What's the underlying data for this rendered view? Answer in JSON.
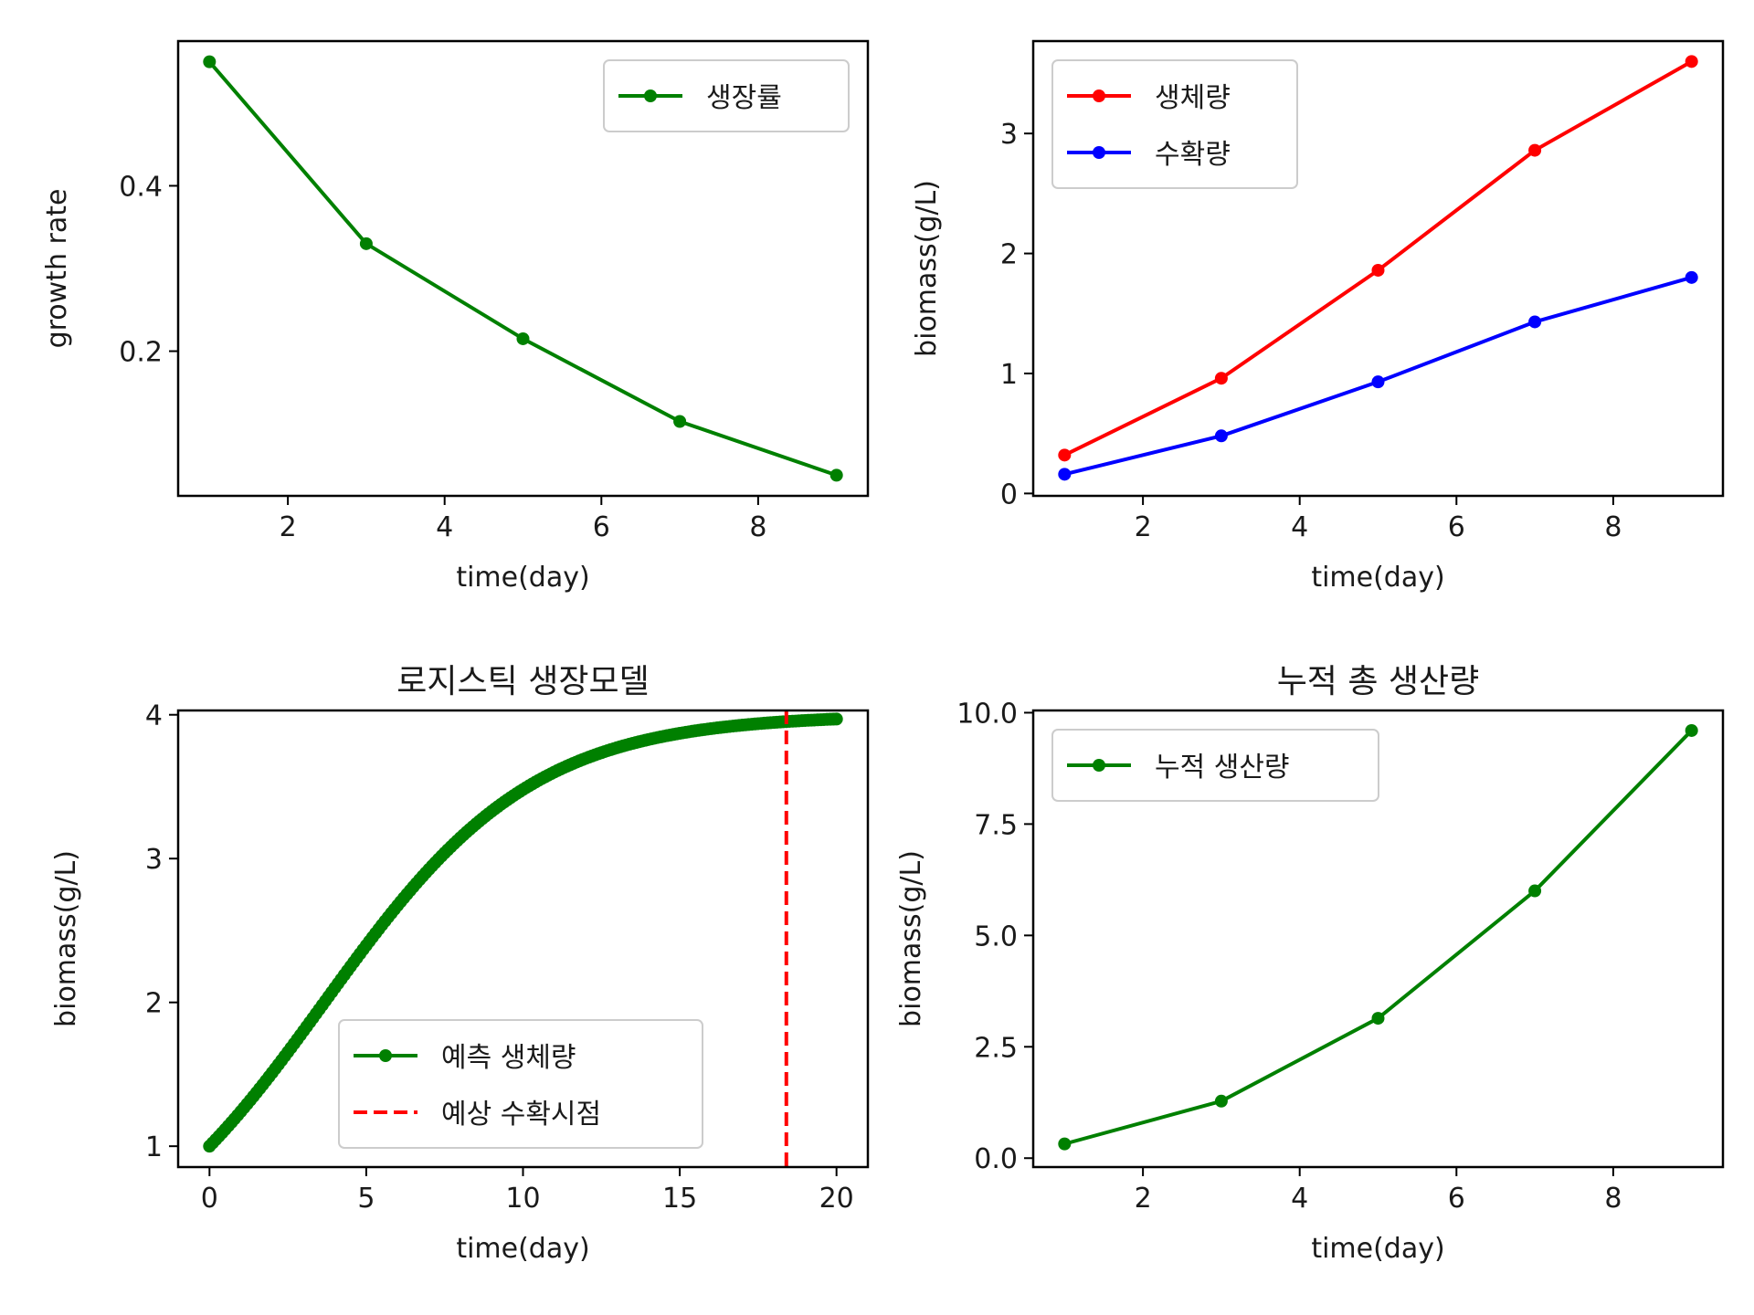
{
  "chart_data": [
    {
      "type": "line",
      "title": "",
      "xlabel": "time(day)",
      "ylabel": "growth rate",
      "xlim": [
        0.6,
        9.4
      ],
      "ylim": [
        0.025,
        0.575
      ],
      "xticks": [
        2,
        4,
        6,
        8
      ],
      "yticks": [
        0.2,
        0.4
      ],
      "ytick_format": "1",
      "legend_position": "top-right",
      "grid": false,
      "series": [
        {
          "name": "생장률",
          "color": "#008000",
          "marker": "dot",
          "style": "solid",
          "x": [
            1,
            3,
            5,
            7,
            9
          ],
          "y": [
            0.55,
            0.33,
            0.215,
            0.115,
            0.05
          ]
        }
      ]
    },
    {
      "type": "line",
      "title": "",
      "xlabel": "time(day)",
      "ylabel": "biomass(g/L)",
      "xlim": [
        0.6,
        9.4
      ],
      "ylim": [
        -0.02,
        3.77
      ],
      "xticks": [
        2,
        4,
        6,
        8
      ],
      "yticks": [
        0,
        1,
        2,
        3
      ],
      "ytick_format": "0",
      "legend_position": "top-left",
      "grid": false,
      "series": [
        {
          "name": "생체량",
          "color": "#ff0000",
          "marker": "dot",
          "style": "solid",
          "x": [
            1,
            3,
            5,
            7,
            9
          ],
          "y": [
            0.32,
            0.96,
            1.86,
            2.86,
            3.6
          ]
        },
        {
          "name": "수확량",
          "color": "#0000ff",
          "marker": "dot",
          "style": "solid",
          "x": [
            1,
            3,
            5,
            7,
            9
          ],
          "y": [
            0.16,
            0.48,
            0.93,
            1.43,
            1.8
          ]
        }
      ]
    },
    {
      "type": "line",
      "title": "로지스틱 생장모델",
      "xlabel": "time(day)",
      "ylabel": "biomass(g/L)",
      "xlim": [
        -1,
        21
      ],
      "ylim": [
        0.855,
        4.03
      ],
      "xticks": [
        0,
        5,
        10,
        15,
        20
      ],
      "yticks": [
        1,
        2,
        3,
        4
      ],
      "ytick_format": "0",
      "legend_position": "lower-center",
      "grid": false,
      "logistic": {
        "K": 4,
        "N0": 1,
        "r": 0.3,
        "t_start": 0,
        "t_end": 20,
        "step": 0.1
      },
      "series": [
        {
          "name": "예측 생체량",
          "color": "#008000",
          "marker": "dot",
          "style": "solid"
        }
      ],
      "vline": {
        "name": "예상 수확시점",
        "x": 18.4,
        "color": "#ff0000",
        "style": "dashed"
      }
    },
    {
      "type": "line",
      "title": "누적 총 생산량",
      "xlabel": "time(day)",
      "ylabel": "biomass(g/L)",
      "xlim": [
        0.6,
        9.4
      ],
      "ylim": [
        -0.2,
        10.05
      ],
      "xticks": [
        2,
        4,
        6,
        8
      ],
      "yticks": [
        0.0,
        2.5,
        5.0,
        7.5,
        10.0
      ],
      "ytick_format": "1",
      "legend_position": "top-left",
      "grid": false,
      "series": [
        {
          "name": "누적 생산량",
          "color": "#008000",
          "marker": "dot",
          "style": "solid",
          "x": [
            1,
            3,
            5,
            7,
            9
          ],
          "y": [
            0.32,
            1.28,
            3.14,
            6.0,
            9.6
          ]
        }
      ]
    }
  ]
}
